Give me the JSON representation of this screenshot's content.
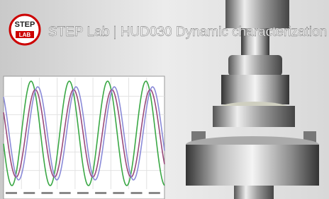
{
  "logo": {
    "top": "STEP",
    "bottom": "LAB"
  },
  "title": "STEP Lab | HUD030 Dynamic characterization"
}
